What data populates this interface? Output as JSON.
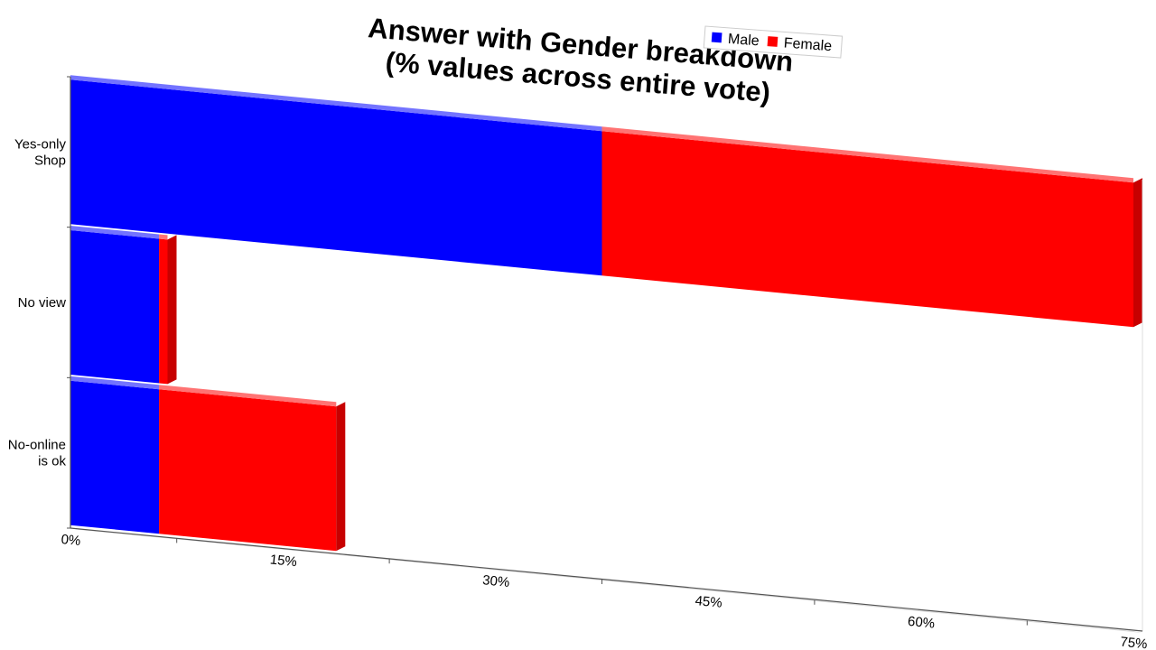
{
  "chart_data": {
    "type": "bar",
    "orientation": "horizontal",
    "stacked": true,
    "title_lines": [
      "Answer with Gender breakdown",
      "(% values across entire vote)"
    ],
    "categories": [
      "Yes-only Shop",
      "No view",
      "No-online is ok"
    ],
    "category_label_lines": [
      [
        "Yes-only",
        "Shop"
      ],
      [
        "No view"
      ],
      [
        "No-online",
        "is ok"
      ]
    ],
    "series": [
      {
        "name": "Male",
        "color": "#0000ff",
        "values": [
          37.5,
          6.25,
          6.25
        ]
      },
      {
        "name": "Female",
        "color": "#ff0000",
        "values": [
          37.5,
          0.6,
          12.5
        ]
      }
    ],
    "xlim": [
      0,
      75
    ],
    "x_ticks": [
      0,
      15,
      30,
      45,
      60,
      75
    ],
    "x_tick_labels": [
      "0%",
      "15%",
      "30%",
      "45%",
      "60%",
      "75%"
    ],
    "legend": {
      "position": "top-right"
    },
    "grid": false
  }
}
